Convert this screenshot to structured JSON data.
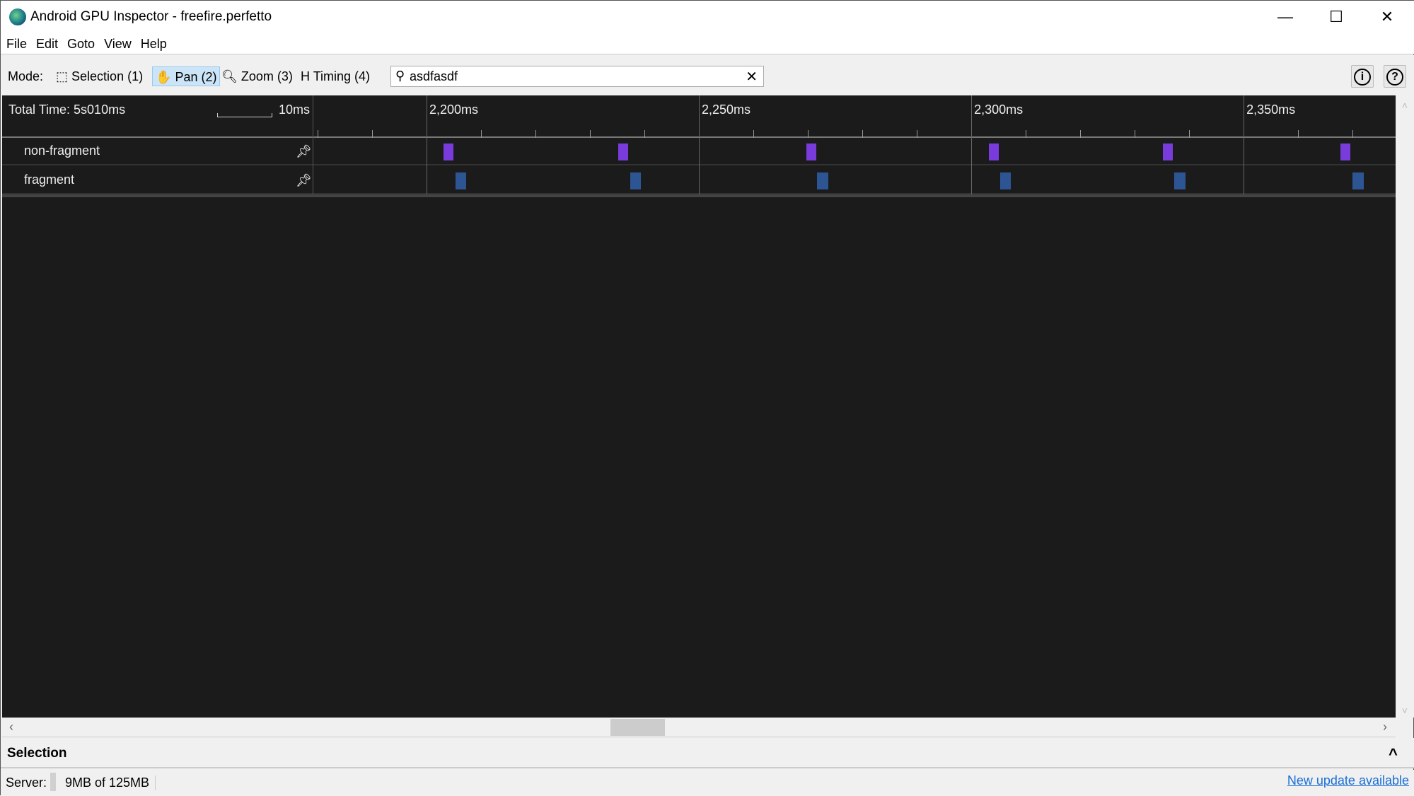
{
  "window": {
    "title": "Android GPU Inspector - freefire.perfetto",
    "minimize": "—",
    "maximize": "☐",
    "close": "✕"
  },
  "menu": [
    "File",
    "Edit",
    "Goto",
    "View",
    "Help"
  ],
  "toolbar": {
    "mode_label": "Mode:",
    "modes": [
      {
        "label": "Selection (1)",
        "icon": "⬚"
      },
      {
        "label": "Pan (2)",
        "icon": "✋",
        "active": true
      },
      {
        "label": "Zoom (3)",
        "icon": "🔍︎"
      },
      {
        "label": "Timing (4)",
        "icon": "H"
      }
    ],
    "search": {
      "value": "asdfasdf",
      "icon": "⚲",
      "clear": "✕"
    },
    "info": "i",
    "help": "?"
  },
  "timeline": {
    "total_time": "Total Time: 5s010ms",
    "scale_label": "10ms",
    "range_ms": [
      2179.1,
      2377.9
    ],
    "major_ticks": [
      {
        "ms": 2200,
        "label": "2,200ms"
      },
      {
        "ms": 2250,
        "label": "2,250ms"
      },
      {
        "ms": 2300,
        "label": "2,300ms"
      },
      {
        "ms": 2350,
        "label": "2,350ms"
      }
    ],
    "minor_tick_ms": 10,
    "tracks": [
      {
        "name": "non-fragment",
        "color": "#7a3bdc",
        "events": [
          [
            2203.1,
            1.8
          ],
          [
            2235.2,
            1.8
          ],
          [
            2269.7,
            1.8
          ],
          [
            2303.2,
            1.8
          ],
          [
            2335.2,
            1.8
          ],
          [
            2367.8,
            1.8
          ]
        ]
      },
      {
        "name": "fragment",
        "color": "#2e5593",
        "events": [
          [
            2205.3,
            2.0
          ],
          [
            2237.4,
            2.0
          ],
          [
            2271.7,
            2.0
          ],
          [
            2305.3,
            2.0
          ],
          [
            2337.3,
            2.0
          ],
          [
            2370.0,
            2.0
          ]
        ]
      }
    ]
  },
  "scrollbar": {
    "left": "‹",
    "right": "›",
    "up": "˄",
    "down": "˅"
  },
  "selection": {
    "title": "Selection",
    "collapse": "^"
  },
  "status": {
    "server_label": "Server:",
    "memory": "9MB of 125MB",
    "update_link": "New update available"
  }
}
